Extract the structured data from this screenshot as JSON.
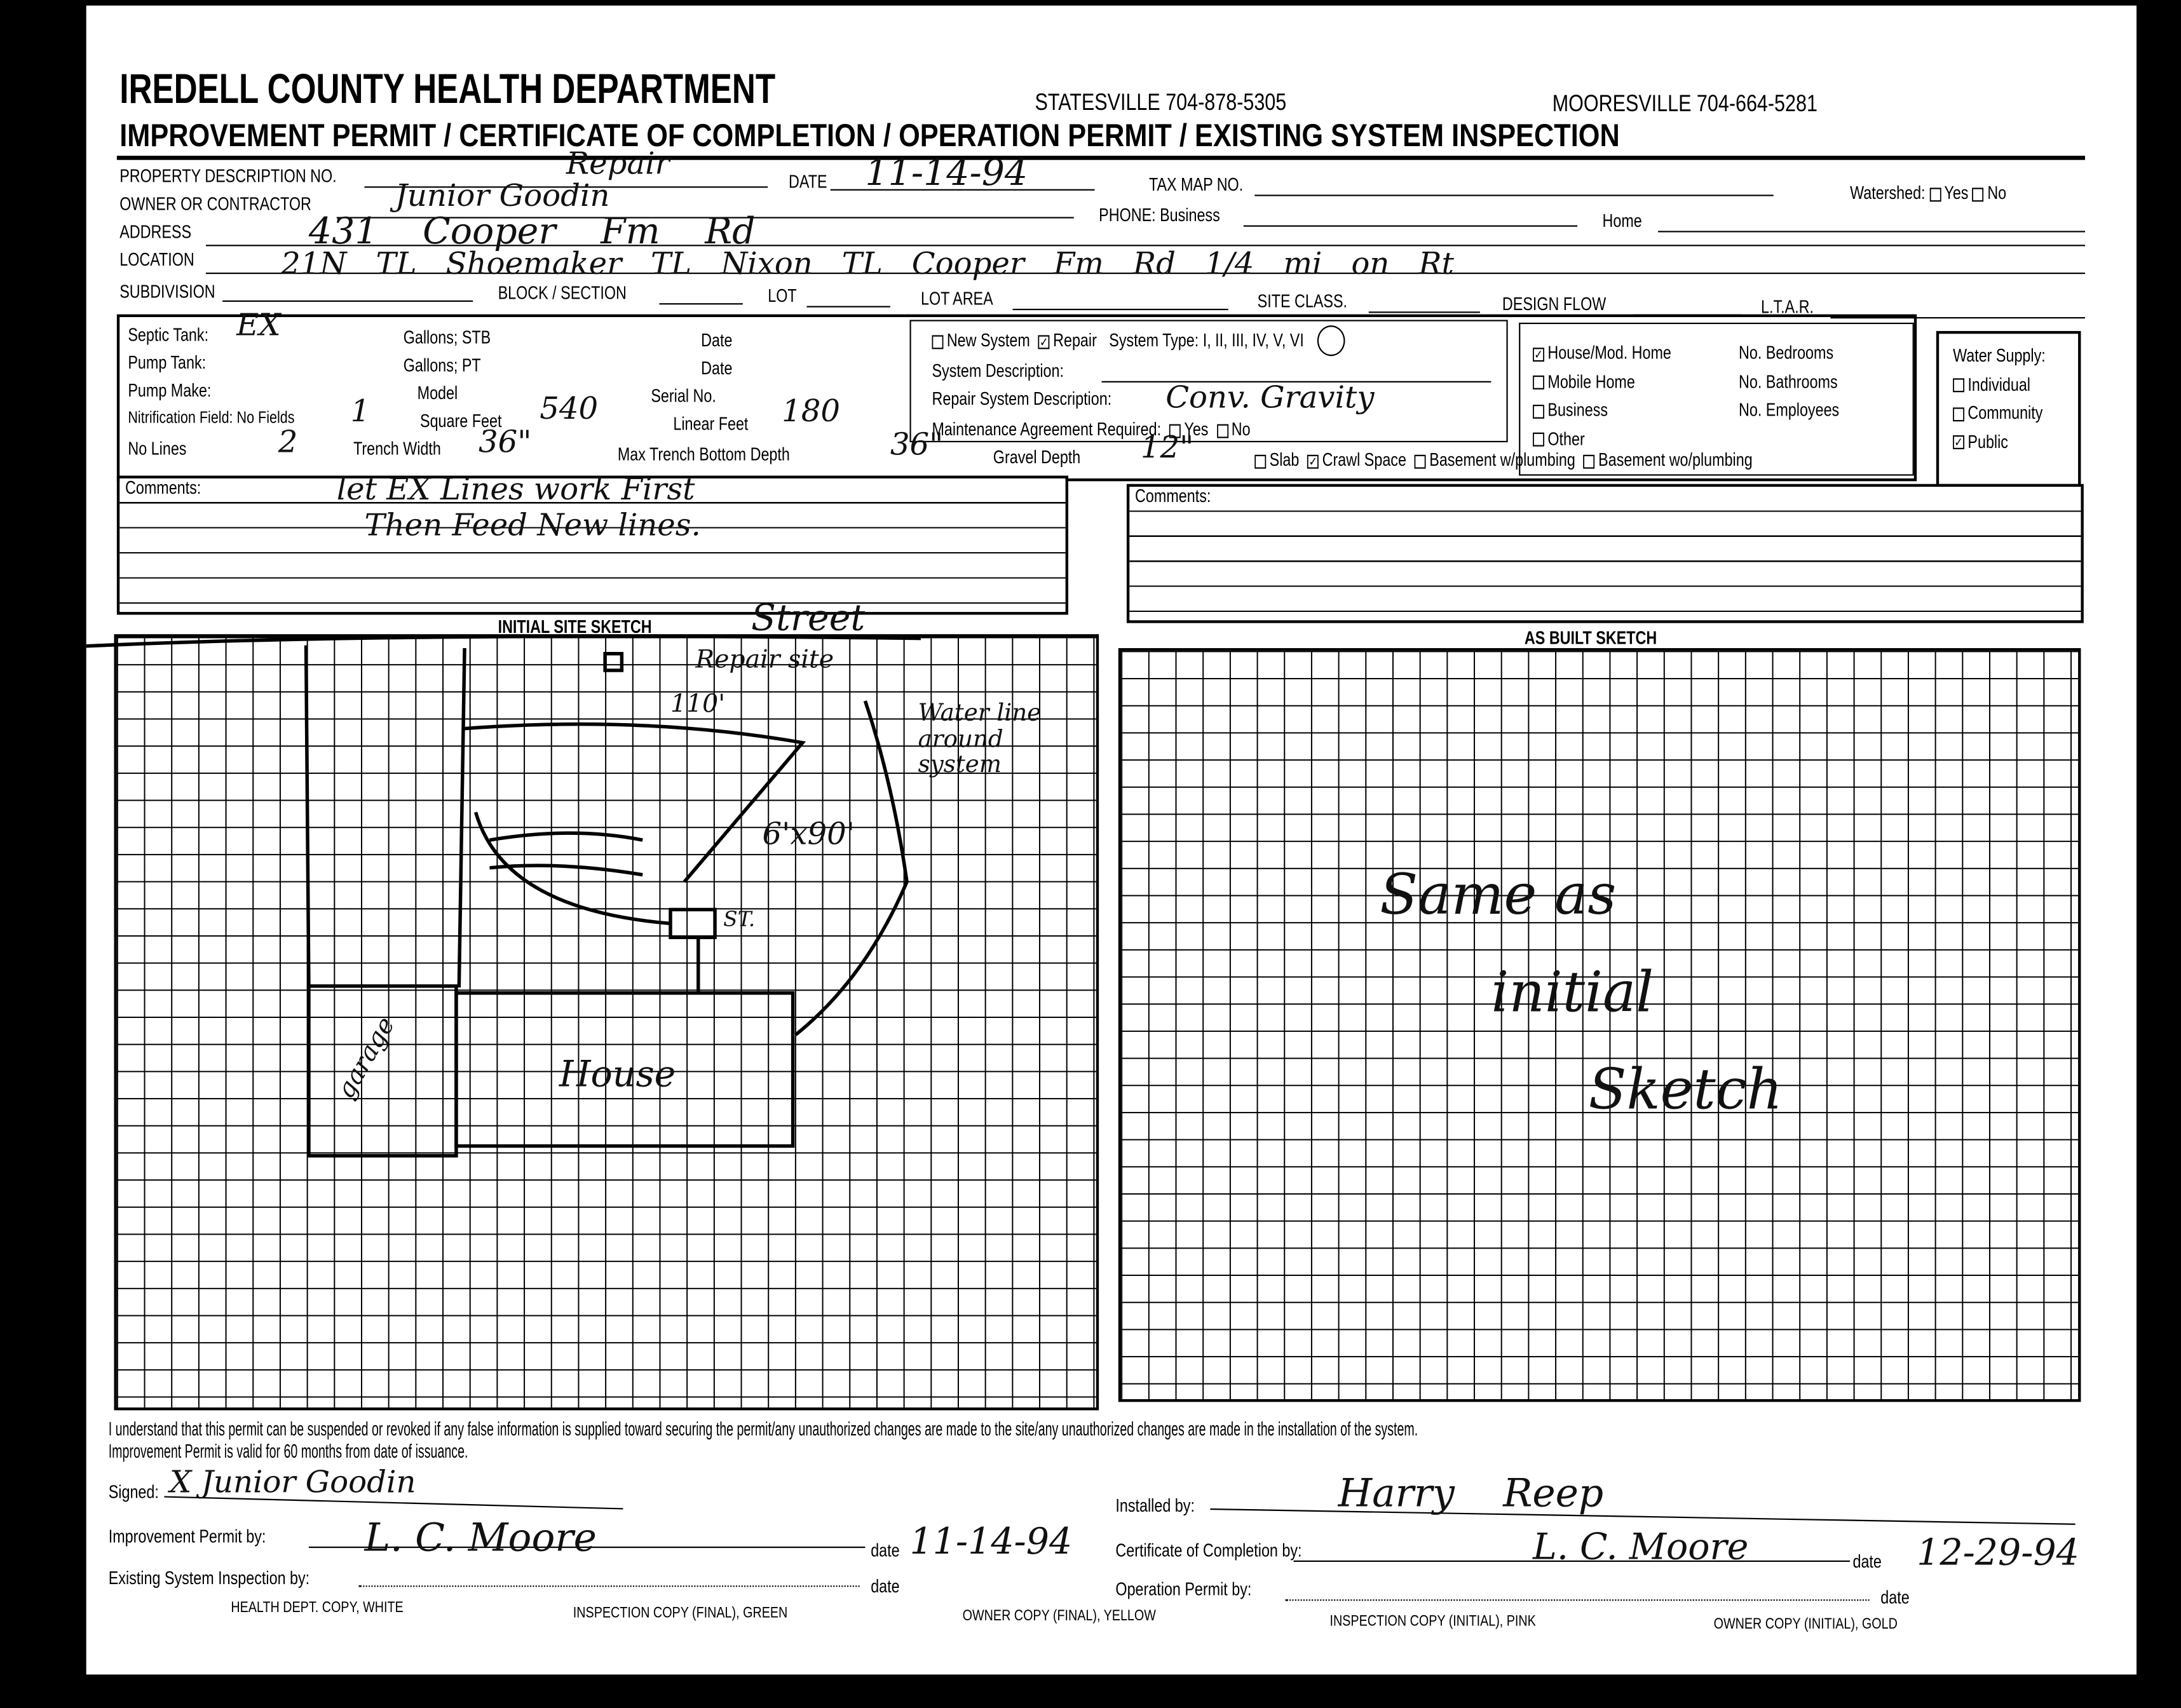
{
  "header": {
    "department": "IREDELL COUNTY HEALTH DEPARTMENT",
    "statesville": "STATESVILLE 704-878-5305",
    "mooresville": "MOORESVILLE 704-664-5281",
    "subtitle": "IMPROVEMENT PERMIT / CERTIFICATE OF COMPLETION / OPERATION PERMIT / EXISTING SYSTEM INSPECTION"
  },
  "fields": {
    "property_label": "PROPERTY DESCRIPTION NO.",
    "property_value": "Repair",
    "date_label": "DATE",
    "date_value": "11-14-94",
    "taxmap_label": "TAX MAP NO.",
    "watershed_label": "Watershed:",
    "watershed_yes": "Yes",
    "watershed_no": "No",
    "owner_label": "OWNER OR CONTRACTOR",
    "owner_value": "Junior Goodin",
    "phone_label": "PHONE: Business",
    "home_label": "Home",
    "address_label": "ADDRESS",
    "address_value": "431 Cooper Fm Rd",
    "location_label": "LOCATION",
    "location_value": "21N TL Shoemaker  TL Nixon  TL Cooper Fm Rd  1/4 mi on Rt",
    "subdivision_label": "SUBDIVISION",
    "block_label": "BLOCK / SECTION",
    "lot_label": "LOT",
    "lot_area_label": "LOT AREA",
    "site_class_label": "SITE CLASS.",
    "design_flow_label": "DESIGN FLOW",
    "ltar_label": "L.T.A.R."
  },
  "system": {
    "septic_label": "Septic Tank:",
    "septic_value": "EX",
    "gallons_stb": "Gallons;  STB",
    "date1": "Date",
    "pump_tank_label": "Pump Tank:",
    "gallons_pt": "Gallons;  PT",
    "date2": "Date",
    "pump_make_label": "Pump Make:",
    "model_label": "Model",
    "serial_label": "Serial No.",
    "nitrification_label": "Nitrification Field: No Fields",
    "fields_value": "1",
    "sqft_label": "Square Feet",
    "sqft_value": "540",
    "linear_label": "Linear Feet",
    "linear_value": "180",
    "lines_label": "No Lines",
    "lines_value": "2",
    "trench_width_label": "Trench Width",
    "trench_width_value": "36\"",
    "max_depth_label": "Max Trench Bottom Depth",
    "max_depth_value": "36\"",
    "gravel_label": "Gravel Depth",
    "gravel_value": "12\"",
    "new_system": "New System",
    "repair": "Repair",
    "system_type_label": "System Type:",
    "system_type_options": "I, II, III, IV, V, VI",
    "system_desc_label": "System Description:",
    "repair_desc_label": "Repair System Description:",
    "repair_desc_value": "Conv. Gravity",
    "maintenance_label": "Maintenance Agreement Required:",
    "maint_yes": "Yes",
    "maint_no": "No",
    "slab": "Slab",
    "crawl": "Crawl Space",
    "basement_w": "Basement w/plumbing",
    "basement_wo": "Basement wo/plumbing",
    "house": "House/Mod. Home",
    "mobile": "Mobile Home",
    "business": "Business",
    "other": "Other",
    "bedrooms": "No. Bedrooms",
    "bathrooms": "No. Bathrooms",
    "employees": "No. Employees",
    "water_supply": "Water Supply:",
    "individual": "Individual",
    "community": "Community",
    "public": "Public"
  },
  "comments": {
    "left_label": "Comments:",
    "left_line1": "let EX Lines work First",
    "left_line2": "Then Feed New lines.",
    "right_label": "Comments:"
  },
  "sketch": {
    "initial_title": "INITIAL SITE SKETCH",
    "as_built_title": "AS BUILT SKETCH",
    "street": "Street",
    "repair_site": "Repair site",
    "dist": "110'",
    "water_line": "Water line around system",
    "field_size": "6'x90'",
    "st": "ST.",
    "garage": "garage",
    "house": "House",
    "as_built_note1": "Same as",
    "as_built_note2": "initial",
    "as_built_note3": "Sketch"
  },
  "footer": {
    "disclaimer1": "I understand that this permit can be suspended or revoked if any false information is supplied toward securing the permit/any unauthorized changes are made to the site/any unauthorized changes are made in the installation of the system.",
    "disclaimer2": "Improvement Permit is valid for 60 months from date of issuance.",
    "signed_label": "Signed:",
    "signed_value": "X Junior Goodin",
    "installed_label": "Installed by:",
    "installed_value": "Harry Reep",
    "improvement_label": "Improvement Permit by:",
    "improvement_value": "L. C. Moore",
    "date_label": "date",
    "improvement_date": "11-14-94",
    "coc_label": "Certificate of Completion by:",
    "coc_value": "L. C. Moore",
    "coc_date": "12-29-94",
    "existing_label": "Existing System Inspection by:",
    "operation_label": "Operation Permit by:",
    "copies": [
      "HEALTH DEPT. COPY, WHITE",
      "INSPECTION COPY (FINAL), GREEN",
      "OWNER COPY (FINAL), YELLOW",
      "INSPECTION COPY (INITIAL), PINK",
      "OWNER COPY (INITIAL), GOLD"
    ]
  }
}
